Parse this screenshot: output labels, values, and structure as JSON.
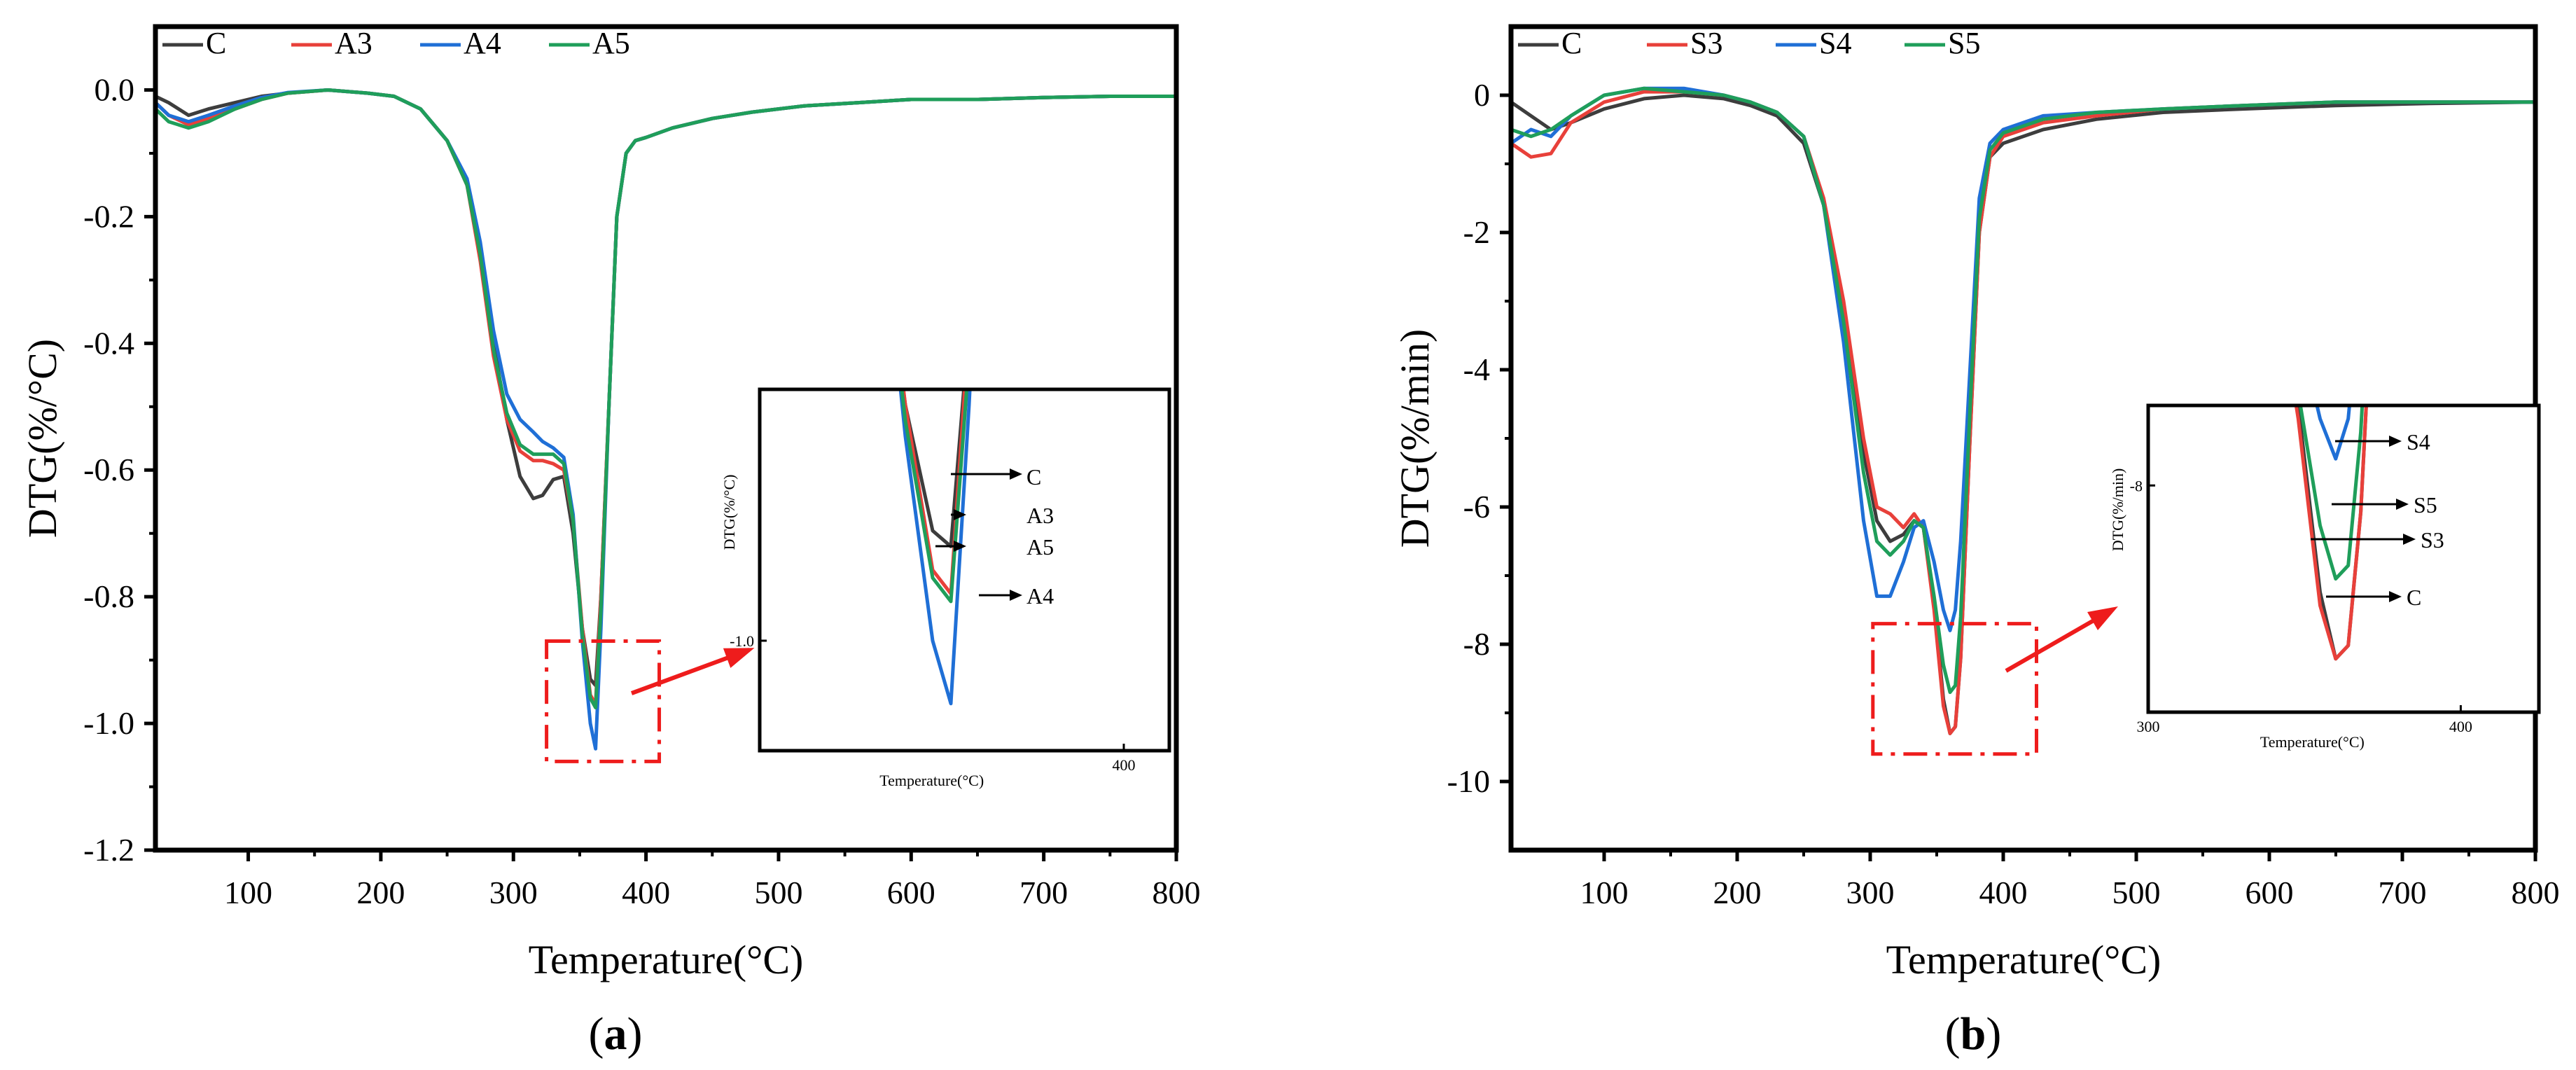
{
  "colors": {
    "C": "#3d3d3d",
    "A3": "#e8403a",
    "A4": "#1f6fd6",
    "A5": "#1f9e5a",
    "S3": "#e8403a",
    "S4": "#1f6fd6",
    "S5": "#1f9e5a",
    "highlight": "#ee1c1c",
    "axis": "#000000"
  },
  "chart_data": [
    {
      "id": "a",
      "type": "line",
      "caption_letter": "a",
      "caption_left": "(",
      "caption_right": ")",
      "xlabel": "Temperature(°C)",
      "ylabel": "DTG(%/°C)",
      "xlim": [
        30,
        800
      ],
      "ylim": [
        -1.2,
        0.1
      ],
      "xticks": [
        100,
        200,
        300,
        400,
        500,
        600,
        700,
        800
      ],
      "xtick_labels": [
        "100",
        "200",
        "300",
        "400",
        "500",
        "600",
        "700",
        "800"
      ],
      "yticks": [
        0.0,
        -0.2,
        -0.4,
        -0.6,
        -0.8,
        -1.0,
        -1.2
      ],
      "ytick_labels": [
        "0.0",
        "-0.2",
        "-0.4",
        "-0.6",
        "-0.8",
        "-1.0",
        "-1.2"
      ],
      "legend_position": "top-left",
      "series": [
        {
          "name": "C",
          "x": [
            30,
            40,
            55,
            70,
            90,
            110,
            130,
            160,
            190,
            210,
            230,
            250,
            265,
            275,
            285,
            295,
            305,
            315,
            322,
            330,
            338,
            345,
            352,
            358,
            362,
            366,
            372,
            378,
            385,
            392,
            400,
            420,
            450,
            480,
            520,
            560,
            600,
            650,
            700,
            750,
            800
          ],
          "y": [
            -0.01,
            -0.02,
            -0.04,
            -0.03,
            -0.02,
            -0.01,
            -0.005,
            0.0,
            -0.005,
            -0.01,
            -0.03,
            -0.08,
            -0.15,
            -0.25,
            -0.4,
            -0.52,
            -0.61,
            -0.645,
            -0.64,
            -0.615,
            -0.61,
            -0.7,
            -0.85,
            -0.93,
            -0.94,
            -0.8,
            -0.5,
            -0.2,
            -0.1,
            -0.08,
            -0.075,
            -0.06,
            -0.045,
            -0.035,
            -0.025,
            -0.02,
            -0.015,
            -0.015,
            -0.012,
            -0.01,
            -0.01
          ]
        },
        {
          "name": "A3",
          "x": [
            30,
            40,
            55,
            70,
            90,
            110,
            130,
            160,
            190,
            210,
            230,
            250,
            265,
            275,
            285,
            295,
            305,
            315,
            322,
            330,
            338,
            345,
            352,
            358,
            362,
            366,
            372,
            378,
            385,
            392,
            400,
            420,
            450,
            480,
            520,
            560,
            600,
            650,
            700,
            750,
            800
          ],
          "y": [
            -0.02,
            -0.04,
            -0.055,
            -0.045,
            -0.03,
            -0.015,
            -0.005,
            0.0,
            -0.005,
            -0.01,
            -0.03,
            -0.08,
            -0.15,
            -0.27,
            -0.42,
            -0.52,
            -0.57,
            -0.585,
            -0.585,
            -0.59,
            -0.6,
            -0.68,
            -0.85,
            -0.955,
            -0.97,
            -0.8,
            -0.5,
            -0.2,
            -0.1,
            -0.08,
            -0.075,
            -0.06,
            -0.045,
            -0.035,
            -0.025,
            -0.02,
            -0.015,
            -0.015,
            -0.012,
            -0.01,
            -0.01
          ]
        },
        {
          "name": "A4",
          "x": [
            30,
            40,
            55,
            70,
            90,
            110,
            130,
            160,
            190,
            210,
            230,
            250,
            265,
            275,
            285,
            295,
            305,
            315,
            322,
            330,
            338,
            345,
            352,
            358,
            362,
            366,
            372,
            378,
            385,
            392,
            400,
            420,
            450,
            480,
            520,
            560,
            600,
            650,
            700,
            750,
            800
          ],
          "y": [
            -0.02,
            -0.04,
            -0.05,
            -0.04,
            -0.025,
            -0.012,
            -0.004,
            0.0,
            -0.005,
            -0.01,
            -0.03,
            -0.08,
            -0.14,
            -0.24,
            -0.38,
            -0.48,
            -0.52,
            -0.54,
            -0.555,
            -0.565,
            -0.58,
            -0.67,
            -0.87,
            -1.0,
            -1.04,
            -0.85,
            -0.5,
            -0.2,
            -0.1,
            -0.08,
            -0.075,
            -0.06,
            -0.045,
            -0.035,
            -0.025,
            -0.02,
            -0.015,
            -0.015,
            -0.012,
            -0.01,
            -0.01
          ]
        },
        {
          "name": "A5",
          "x": [
            30,
            40,
            55,
            70,
            90,
            110,
            130,
            160,
            190,
            210,
            230,
            250,
            265,
            275,
            285,
            295,
            305,
            315,
            322,
            330,
            338,
            345,
            352,
            358,
            362,
            366,
            372,
            378,
            385,
            392,
            400,
            420,
            450,
            480,
            520,
            560,
            600,
            650,
            700,
            750,
            800
          ],
          "y": [
            -0.03,
            -0.05,
            -0.06,
            -0.05,
            -0.03,
            -0.015,
            -0.005,
            0.0,
            -0.005,
            -0.01,
            -0.03,
            -0.08,
            -0.15,
            -0.26,
            -0.41,
            -0.51,
            -0.56,
            -0.575,
            -0.575,
            -0.575,
            -0.59,
            -0.68,
            -0.86,
            -0.96,
            -0.975,
            -0.82,
            -0.5,
            -0.2,
            -0.1,
            -0.08,
            -0.075,
            -0.06,
            -0.045,
            -0.035,
            -0.025,
            -0.02,
            -0.015,
            -0.015,
            -0.012,
            -0.01,
            -0.01
          ]
        }
      ],
      "highlight_box": {
        "x": [
          325,
          410
        ],
        "y": [
          -1.06,
          -0.87
        ]
      },
      "inset": {
        "ylabel": "DTG(%/°C)",
        "xlabel": "Temperature(°C)",
        "ytick_label": "-1.0",
        "xtick_label": "400",
        "xlim": [
          320,
          410
        ],
        "ylim": [
          -1.07,
          -0.84
        ],
        "ytick": -1.0,
        "xtick": 400,
        "annotations": [
          "C",
          "A3",
          "A5",
          "A4"
        ]
      }
    },
    {
      "id": "b",
      "type": "line",
      "caption_letter": "b",
      "caption_left": "(",
      "caption_right": ")",
      "xlabel": "Temperature(°C)",
      "ylabel": "DTG(%/min)",
      "xlim": [
        30,
        800
      ],
      "ylim": [
        -11,
        1
      ],
      "xticks": [
        100,
        200,
        300,
        400,
        500,
        600,
        700,
        800
      ],
      "xtick_labels": [
        "100",
        "200",
        "300",
        "400",
        "500",
        "600",
        "700",
        "800"
      ],
      "yticks": [
        0,
        -2,
        -4,
        -6,
        -8,
        -10
      ],
      "ytick_labels": [
        "0",
        "-2",
        "-4",
        "-6",
        "-8",
        "-10"
      ],
      "legend_position": "top-left",
      "series": [
        {
          "name": "C",
          "x": [
            30,
            45,
            60,
            75,
            100,
            130,
            160,
            190,
            210,
            230,
            250,
            265,
            280,
            295,
            305,
            315,
            325,
            333,
            340,
            348,
            355,
            360,
            364,
            368,
            375,
            382,
            390,
            400,
            430,
            470,
            520,
            580,
            650,
            720,
            800
          ],
          "y": [
            -0.1,
            -0.3,
            -0.5,
            -0.4,
            -0.2,
            -0.05,
            0.0,
            -0.05,
            -0.15,
            -0.3,
            -0.7,
            -1.6,
            -3.2,
            -5.2,
            -6.2,
            -6.5,
            -6.4,
            -6.2,
            -6.3,
            -7.4,
            -8.8,
            -9.3,
            -9.2,
            -8.2,
            -5.0,
            -2.0,
            -0.9,
            -0.7,
            -0.5,
            -0.35,
            -0.25,
            -0.2,
            -0.15,
            -0.12,
            -0.1
          ]
        },
        {
          "name": "S3",
          "x": [
            30,
            45,
            60,
            75,
            100,
            130,
            160,
            190,
            210,
            230,
            250,
            265,
            280,
            295,
            305,
            315,
            325,
            333,
            340,
            348,
            355,
            360,
            364,
            368,
            375,
            382,
            390,
            400,
            430,
            470,
            520,
            580,
            650,
            720,
            800
          ],
          "y": [
            -0.7,
            -0.9,
            -0.85,
            -0.4,
            -0.1,
            0.05,
            0.05,
            0.0,
            -0.1,
            -0.25,
            -0.6,
            -1.5,
            -3.0,
            -5.0,
            -6.0,
            -6.1,
            -6.3,
            -6.1,
            -6.3,
            -7.5,
            -8.9,
            -9.3,
            -9.2,
            -8.2,
            -5.0,
            -2.0,
            -0.9,
            -0.6,
            -0.4,
            -0.3,
            -0.2,
            -0.15,
            -0.1,
            -0.1,
            -0.1
          ]
        },
        {
          "name": "S4",
          "x": [
            30,
            45,
            60,
            75,
            100,
            130,
            160,
            190,
            210,
            230,
            250,
            265,
            280,
            295,
            305,
            315,
            325,
            333,
            340,
            348,
            355,
            360,
            364,
            368,
            375,
            382,
            390,
            400,
            430,
            470,
            520,
            580,
            650,
            720,
            800
          ],
          "y": [
            -0.7,
            -0.5,
            -0.6,
            -0.3,
            0.0,
            0.1,
            0.1,
            0.0,
            -0.1,
            -0.25,
            -0.6,
            -1.6,
            -3.6,
            -6.2,
            -7.3,
            -7.3,
            -6.8,
            -6.3,
            -6.2,
            -6.8,
            -7.5,
            -7.8,
            -7.5,
            -6.5,
            -4.0,
            -1.5,
            -0.7,
            -0.5,
            -0.3,
            -0.25,
            -0.2,
            -0.15,
            -0.1,
            -0.1,
            -0.1
          ]
        },
        {
          "name": "S5",
          "x": [
            30,
            45,
            60,
            75,
            100,
            130,
            160,
            190,
            210,
            230,
            250,
            265,
            280,
            295,
            305,
            315,
            325,
            333,
            340,
            348,
            355,
            360,
            364,
            368,
            375,
            382,
            390,
            400,
            430,
            470,
            520,
            580,
            650,
            720,
            800
          ],
          "y": [
            -0.5,
            -0.6,
            -0.5,
            -0.3,
            0.0,
            0.1,
            0.05,
            0.0,
            -0.1,
            -0.25,
            -0.6,
            -1.6,
            -3.3,
            -5.5,
            -6.5,
            -6.7,
            -6.5,
            -6.2,
            -6.3,
            -7.3,
            -8.3,
            -8.7,
            -8.6,
            -7.6,
            -4.6,
            -1.8,
            -0.8,
            -0.55,
            -0.35,
            -0.25,
            -0.2,
            -0.15,
            -0.1,
            -0.1,
            -0.1
          ]
        }
      ],
      "highlight_box": {
        "x": [
          302,
          425
        ],
        "y": [
          -9.6,
          -7.7
        ]
      },
      "inset": {
        "ylabel": "DTG(%/min)",
        "xlabel": "Temperature(°C)",
        "ytick_label": "-8",
        "xtick_labels": [
          "300",
          "400"
        ],
        "xlim": [
          300,
          425
        ],
        "ylim": [
          -9.7,
          -7.4
        ],
        "ytick": -8,
        "xticks": [
          300,
          400
        ],
        "annotations": [
          "S4",
          "S5",
          "S3",
          "C"
        ]
      }
    }
  ]
}
